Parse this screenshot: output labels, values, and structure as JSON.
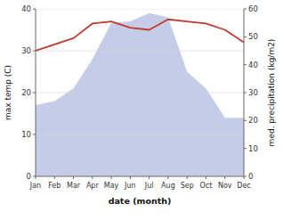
{
  "chart_data": {
    "type": "line",
    "xlabel": "date (month)",
    "ylabel": "max temp (C)",
    "y2label": "med. precipitation (kg/m2)",
    "categories": [
      "Jan",
      "Feb",
      "Mar",
      "Apr",
      "May",
      "Jun",
      "Jul",
      "Aug",
      "Sep",
      "Oct",
      "Nov",
      "Dec"
    ],
    "series": [
      {
        "type": "area",
        "axis": "y2",
        "color": "#c5cce8",
        "values": [
          25.5,
          27.0,
          31.5,
          42.0,
          55.0,
          55.5,
          58.5,
          57.0,
          37.5,
          31.5,
          21.0,
          21.0
        ]
      },
      {
        "type": "line",
        "color": "#c0392b",
        "values": [
          30.0,
          31.5,
          33.0,
          36.5,
          37.0,
          35.5,
          35.0,
          37.5,
          37.0,
          36.5,
          35.0,
          32.0
        ]
      }
    ],
    "ylim": [
      0,
      40
    ],
    "yticks": [
      0,
      10,
      20,
      30,
      40
    ],
    "y2lim": [
      0,
      60
    ],
    "y2ticks": [
      0,
      10,
      20,
      30,
      40,
      50,
      60
    ],
    "grid": true
  }
}
